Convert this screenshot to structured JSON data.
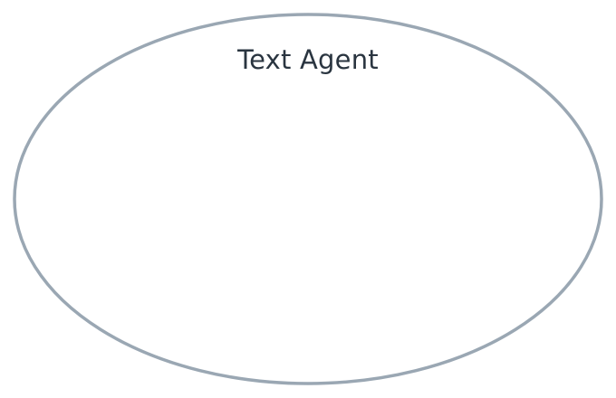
{
  "node": {
    "label": "Text Agent",
    "shape": "ellipse"
  },
  "colors": {
    "background": "#ffffff",
    "outline": "#9aa7b3",
    "label": "#2a3540"
  }
}
